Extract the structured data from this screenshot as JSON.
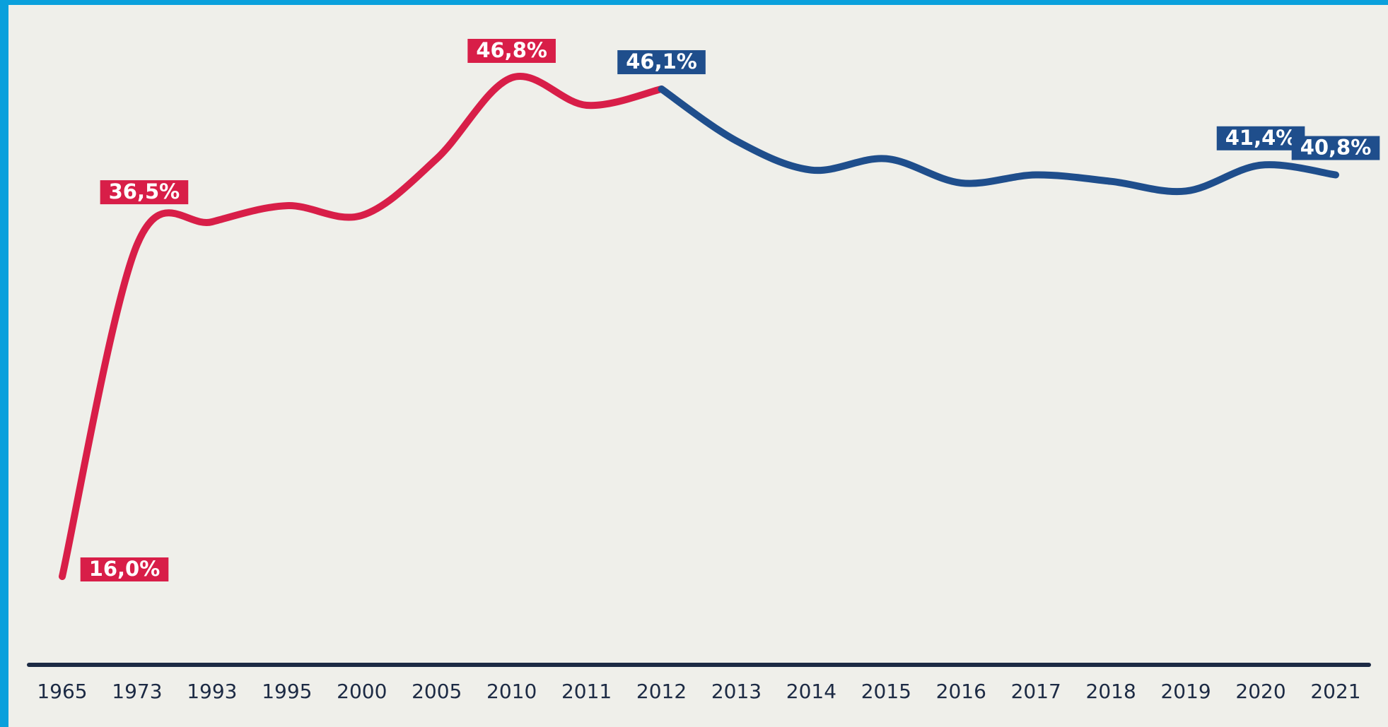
{
  "chart_data": {
    "type": "line",
    "categories": [
      "1965",
      "1973",
      "1993",
      "1995",
      "2000",
      "2005",
      "2010",
      "2011",
      "2012",
      "2013",
      "2014",
      "2015",
      "2016",
      "2017",
      "2018",
      "2019",
      "2020",
      "2021"
    ],
    "series": [
      {
        "color": "#d81e48",
        "values": [
          16.0,
          36.5,
          37.9,
          38.9,
          38.3,
          41.8,
          46.8,
          45.1,
          46.1,
          null,
          null,
          null,
          null,
          null,
          null,
          null,
          null,
          null
        ],
        "value_labels": [
          "16,0%",
          "36,5%",
          null,
          null,
          null,
          null,
          "46,8%",
          null,
          null,
          null,
          null,
          null,
          null,
          null,
          null,
          null,
          null,
          null
        ]
      },
      {
        "color": "#1f4e8c",
        "values": [
          null,
          null,
          null,
          null,
          null,
          null,
          null,
          null,
          46.1,
          42.9,
          41.1,
          41.8,
          40.3,
          40.8,
          40.4,
          39.8,
          41.4,
          40.8
        ],
        "value_labels": [
          null,
          null,
          null,
          null,
          null,
          null,
          null,
          null,
          "46,1%",
          null,
          null,
          null,
          null,
          null,
          null,
          null,
          "41,4%",
          "40,8%"
        ]
      }
    ]
  }
}
